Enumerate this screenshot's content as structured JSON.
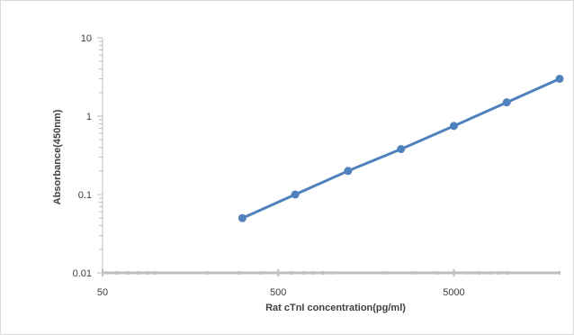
{
  "chart_data": {
    "type": "line",
    "title": "",
    "xlabel": "Rat cTnI concentration(pg/ml)",
    "ylabel": "Absorbance(450nm)",
    "x_scale": "log",
    "y_scale": "log",
    "xlim": [
      50,
      20000
    ],
    "ylim": [
      0.01,
      10
    ],
    "x_ticks": [
      {
        "value": 50,
        "label": "50"
      },
      {
        "value": 500,
        "label": "500"
      },
      {
        "value": 5000,
        "label": "5000"
      }
    ],
    "y_ticks": [
      {
        "value": 10,
        "label": "10"
      },
      {
        "value": 1,
        "label": "1"
      },
      {
        "value": 0.1,
        "label": "0.1"
      },
      {
        "value": 0.01,
        "label": "0.01"
      }
    ],
    "grid": false,
    "legend": "none",
    "series": [
      {
        "color": "#4f81bd",
        "points": [
          {
            "x": 312.5,
            "y": 0.05
          },
          {
            "x": 625,
            "y": 0.1
          },
          {
            "x": 1250,
            "y": 0.2
          },
          {
            "x": 2500,
            "y": 0.38
          },
          {
            "x": 5000,
            "y": 0.75
          },
          {
            "x": 10000,
            "y": 1.5
          },
          {
            "x": 20000,
            "y": 3.0
          }
        ]
      }
    ]
  }
}
